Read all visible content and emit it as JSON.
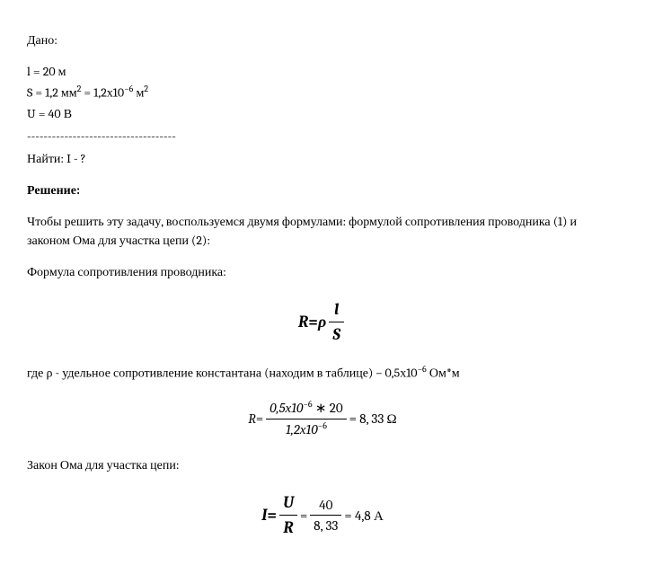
{
  "given": {
    "heading": "Дано:",
    "line1_pre": "l = 20 м",
    "line2_pre": "S = 1,2 мм",
    "line2_exp1": "2",
    "line2_mid": " = 1,2х10",
    "line2_exp2": "−6",
    "line2_post": " м",
    "line2_exp3": "2",
    "line3": "U = 40 В",
    "divider": "------------------------------------",
    "find": "Найти: I - ?"
  },
  "solution": {
    "heading": "Решение:",
    "intro": "Чтобы решить эту задачу, воспользуемся двумя формулами: формулой сопротивления проводника (1) и законом Ома для участка цепи (2):",
    "formula1_label": "Формула сопротивления проводника:",
    "formula_R": {
      "lhs": "R",
      "eq": " = ",
      "rho": "ρ",
      "num": "l",
      "den": "S"
    },
    "rho_text_pre": "где ρ - удельное сопротивление константана (находим в таблице) – 0,5х10",
    "rho_text_exp": "−6",
    "rho_text_post": " Ом*м",
    "calc_R": {
      "lhs": "R",
      "eq": " = ",
      "num_a": "0,5х10",
      "num_exp": "−6",
      "num_b": " ∗ 20",
      "den_a": "1,2х10",
      "den_exp": "−6",
      "result": " = 8, 33 Ω"
    },
    "formula2_label": "Закон Ома для участка цепи:",
    "formula_I": {
      "lhs": "I",
      "eq": " = ",
      "num": "U",
      "den": "R",
      "num2": "40",
      "den2": "8, 33",
      "result": " = 4,8 А"
    }
  }
}
